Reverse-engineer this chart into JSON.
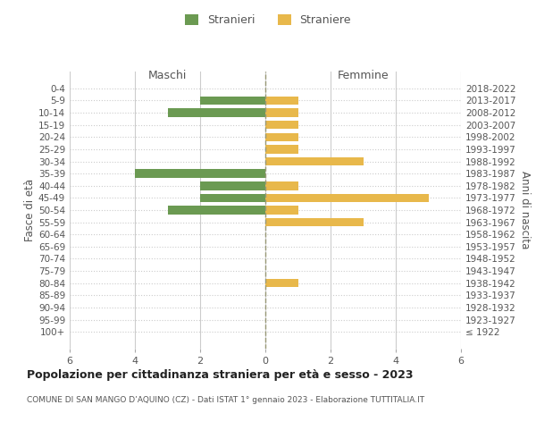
{
  "age_groups": [
    "100+",
    "95-99",
    "90-94",
    "85-89",
    "80-84",
    "75-79",
    "70-74",
    "65-69",
    "60-64",
    "55-59",
    "50-54",
    "45-49",
    "40-44",
    "35-39",
    "30-34",
    "25-29",
    "20-24",
    "15-19",
    "10-14",
    "5-9",
    "0-4"
  ],
  "birth_years": [
    "≤ 1922",
    "1923-1927",
    "1928-1932",
    "1933-1937",
    "1938-1942",
    "1943-1947",
    "1948-1952",
    "1953-1957",
    "1958-1962",
    "1963-1967",
    "1968-1972",
    "1973-1977",
    "1978-1982",
    "1983-1987",
    "1988-1992",
    "1993-1997",
    "1998-2002",
    "2003-2007",
    "2008-2012",
    "2013-2017",
    "2018-2022"
  ],
  "stranieri": [
    0,
    0,
    0,
    0,
    0,
    0,
    0,
    0,
    0,
    0,
    3,
    2,
    2,
    4,
    0,
    0,
    0,
    0,
    3,
    2,
    0
  ],
  "straniere": [
    0,
    0,
    0,
    0,
    1,
    0,
    0,
    0,
    0,
    3,
    1,
    5,
    1,
    0,
    3,
    1,
    1,
    1,
    1,
    1,
    0
  ],
  "color_stranieri": "#6b9a52",
  "color_straniere": "#e8b84b",
  "xlim": 6,
  "title": "Popolazione per cittadinanza straniera per età e sesso - 2023",
  "subtitle": "COMUNE DI SAN MANGO D’AQUINO (CZ) - Dati ISTAT 1° gennaio 2023 - Elaborazione TUTTITALIA.IT",
  "ylabel_left": "Fasce di età",
  "ylabel_right": "Anni di nascita",
  "legend_stranieri": "Stranieri",
  "legend_straniere": "Straniere",
  "maschi_label": "Maschi",
  "femmine_label": "Femmine",
  "xticks": [
    -6,
    -4,
    -2,
    0,
    2,
    4,
    6
  ],
  "xtick_labels": [
    "6",
    "4",
    "2",
    "0",
    "2",
    "4",
    "6"
  ],
  "background_color": "#ffffff",
  "grid_color": "#cccccc"
}
